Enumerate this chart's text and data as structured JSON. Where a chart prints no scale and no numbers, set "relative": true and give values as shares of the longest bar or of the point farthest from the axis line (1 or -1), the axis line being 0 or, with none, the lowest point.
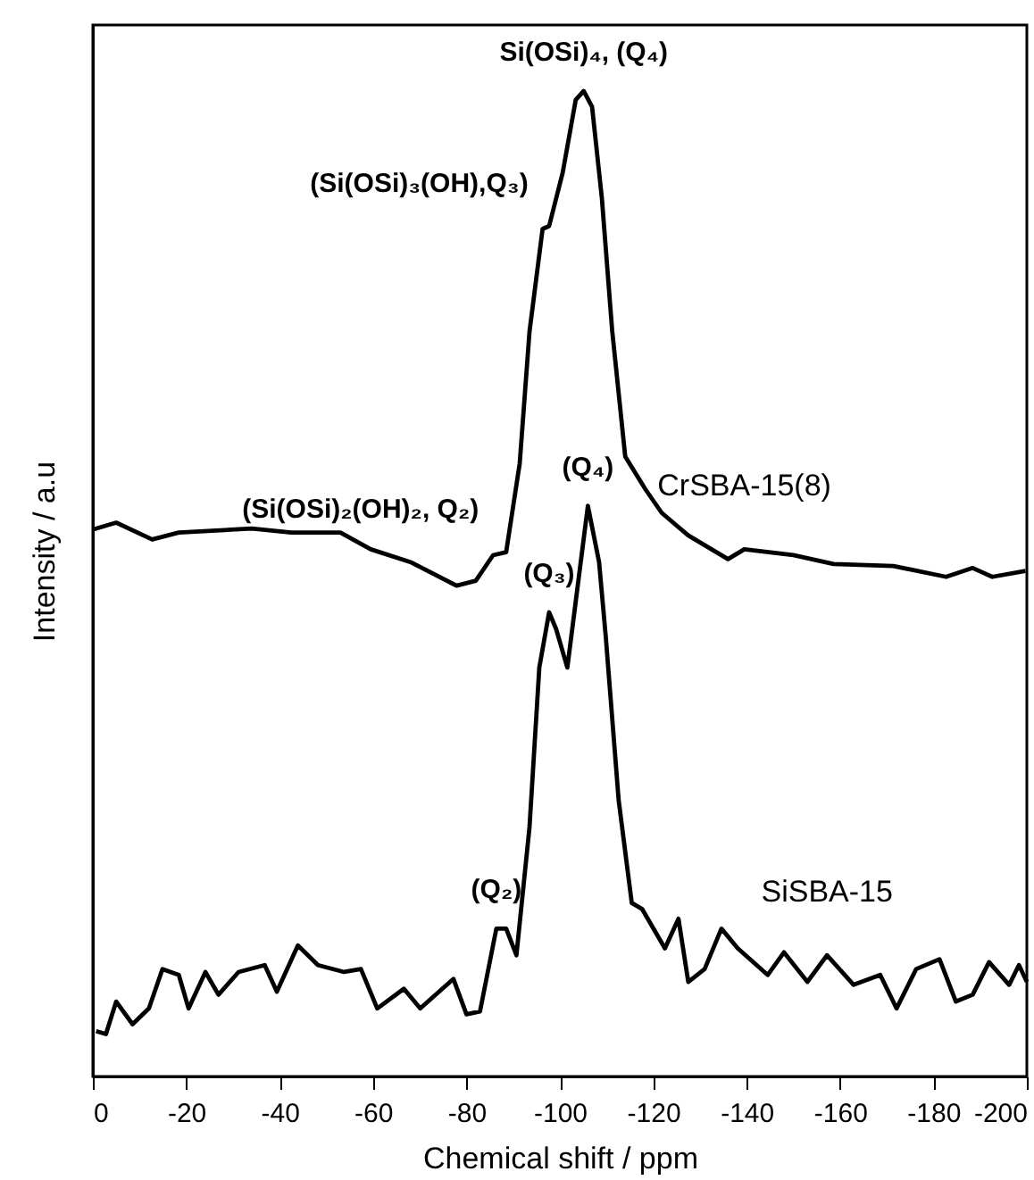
{
  "chart_data": {
    "type": "line",
    "xlabel": "Chemical shift / ppm",
    "ylabel": "Intensity / a.u",
    "relative": true,
    "legend": false,
    "grid": false,
    "marker": "none",
    "line_style": "solid",
    "xlim": [
      0,
      -200
    ],
    "xticks": [
      0,
      -20,
      -40,
      -60,
      -80,
      -100,
      -120,
      -140,
      -160,
      -180,
      -200
    ],
    "series": [
      {
        "name": "CrSBA-15(8)",
        "color": "#000000",
        "x": [
          0,
          -5,
          -12.7,
          -18.4,
          -34,
          -42.5,
          -53,
          -59.5,
          -68,
          -77.9,
          -82,
          -85.7,
          -88.5,
          -91.4,
          -93.5,
          -96.3,
          -97.7,
          -100.6,
          -103.4,
          -105.1,
          -106.9,
          -109,
          -111.2,
          -114,
          -118.3,
          -121.8,
          -127.5,
          -136,
          -139.5,
          -150,
          -158.6,
          -171.4,
          -182.7,
          -188.4,
          -192.6,
          -199.7
        ],
        "values": [
          0.555,
          0.562,
          0.545,
          0.552,
          0.556,
          0.552,
          0.552,
          0.535,
          0.522,
          0.498,
          0.503,
          0.529,
          0.532,
          0.622,
          0.756,
          0.86,
          0.863,
          0.917,
          0.991,
          1.0,
          0.984,
          0.891,
          0.757,
          0.629,
          0.596,
          0.572,
          0.549,
          0.525,
          0.535,
          0.529,
          0.52,
          0.518,
          0.507,
          0.516,
          0.507,
          0.513
        ]
      },
      {
        "name": "SiSBA-15",
        "color": "#000000",
        "x": [
          -0.7,
          -2.8,
          -5,
          -8.5,
          -12,
          -14.9,
          -18.4,
          -20.5,
          -24.1,
          -26.9,
          -31.2,
          -36.8,
          -39.4,
          -43.9,
          -48.2,
          -53.8,
          -57.4,
          -60.9,
          -66.6,
          -70.1,
          -77.2,
          -80,
          -82.9,
          -86.4,
          -88.5,
          -90.7,
          -93.5,
          -95.6,
          -97.7,
          -99.2,
          -101.6,
          -103.4,
          -106,
          -108.4,
          -109.8,
          -112.6,
          -115.4,
          -117.6,
          -122.5,
          -125.4,
          -127.5,
          -131,
          -134.6,
          -138.1,
          -144.5,
          -148,
          -153,
          -157.2,
          -162.9,
          -168.6,
          -172.1,
          -176.3,
          -181.3,
          -184.8,
          -188.4,
          -191.9,
          -196.2,
          -198.3,
          -200
        ],
        "values": [
          0.046,
          0.043,
          0.076,
          0.053,
          0.069,
          0.109,
          0.103,
          0.069,
          0.106,
          0.083,
          0.106,
          0.113,
          0.086,
          0.133,
          0.113,
          0.106,
          0.109,
          0.069,
          0.089,
          0.069,
          0.099,
          0.063,
          0.066,
          0.15,
          0.15,
          0.123,
          0.253,
          0.415,
          0.471,
          0.454,
          0.415,
          0.482,
          0.579,
          0.522,
          0.448,
          0.28,
          0.176,
          0.17,
          0.13,
          0.16,
          0.096,
          0.109,
          0.15,
          0.13,
          0.103,
          0.126,
          0.096,
          0.123,
          0.093,
          0.103,
          0.069,
          0.109,
          0.119,
          0.076,
          0.083,
          0.116,
          0.093,
          0.113,
          0.096
        ]
      }
    ],
    "annotations": [
      {
        "text": "Si(OSi)₄, (Q₄)",
        "x": -105.1,
        "y": 1.0
      },
      {
        "text": "(Si(OSi)₃(OH),Q₃)",
        "x": -96.3,
        "y": 0.86
      },
      {
        "text": "(Si(OSi)₂(OH)₂, Q₂)",
        "x": -85.7,
        "y": 0.529
      },
      {
        "text": "(Q₄)",
        "x": -106,
        "y": 0.579
      },
      {
        "text": "(Q₃)",
        "x": -97.7,
        "y": 0.471
      },
      {
        "text": "(Q₂)",
        "x": -86.4,
        "y": 0.15
      }
    ]
  }
}
